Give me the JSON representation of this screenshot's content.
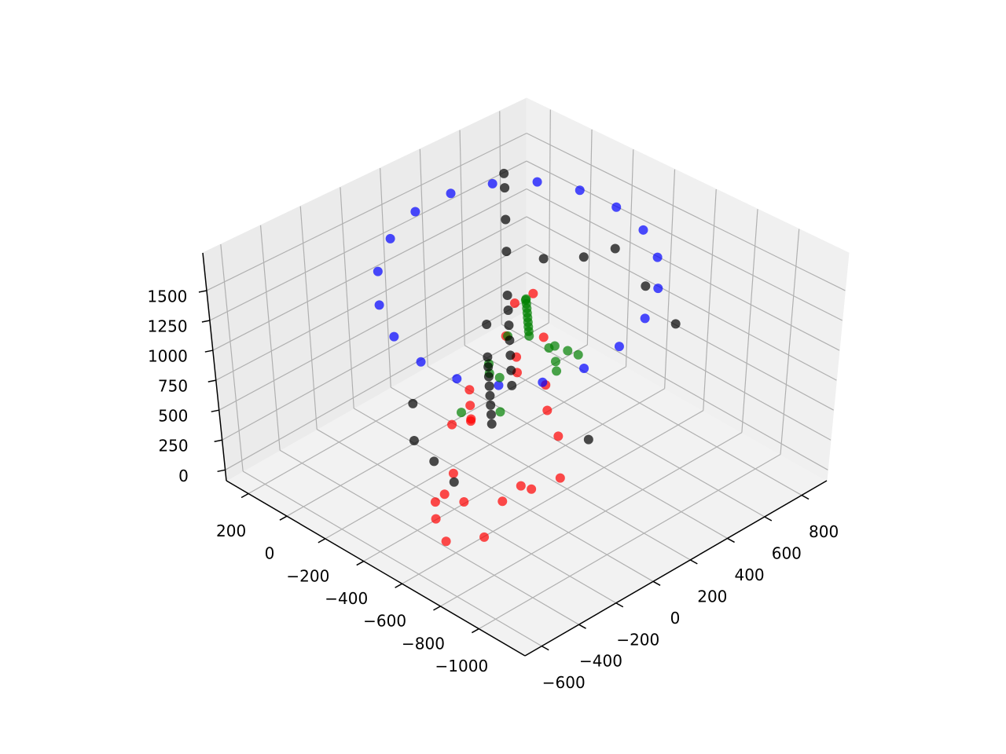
{
  "chart_data": {
    "type": "scatter3d",
    "grid": true,
    "xlim": [
      -1240,
      315
    ],
    "ylim": [
      -690,
      935
    ],
    "zlim": [
      -90,
      1815
    ],
    "xticks": [
      200,
      0,
      {
        "value": -200,
        "label": "−200"
      },
      {
        "value": -400,
        "label": "−400"
      },
      {
        "value": -600,
        "label": "−600"
      },
      {
        "value": -800,
        "label": "−800"
      },
      {
        "value": -1000,
        "label": "−1000"
      }
    ],
    "yticks": [
      {
        "value": -600,
        "label": "−600"
      },
      {
        "value": -400,
        "label": "−400"
      },
      {
        "value": -200,
        "label": "−200"
      },
      0,
      200,
      400,
      600,
      800
    ],
    "zticks": [
      0,
      250,
      500,
      750,
      1000,
      1250,
      1500
    ],
    "series": [
      {
        "color": "#ff0000",
        "x": [
          -500,
          -550,
          -600,
          -450,
          -700,
          -650,
          -400,
          -350,
          -750,
          -300,
          -200,
          -100,
          0,
          -250,
          -150,
          -50,
          100,
          150,
          -800,
          -850,
          -600,
          -400,
          -200,
          50,
          200
        ],
        "y": [
          -400,
          -300,
          -450,
          -350,
          -250,
          -100,
          -250,
          -150,
          -400,
          0,
          100,
          200,
          300,
          -50,
          400,
          500,
          600,
          700,
          -200,
          -100,
          150,
          300,
          500,
          750,
          850
        ],
        "z": [
          100,
          200,
          50,
          150,
          300,
          250,
          80,
          120,
          180,
          400,
          200,
          150,
          100,
          350,
          300,
          250,
          200,
          350,
          450,
          500,
          400,
          300,
          150,
          100,
          250
        ]
      },
      {
        "color": "#0000ff",
        "x": [
          200,
          175,
          105,
          -6,
          -145,
          -300,
          -455,
          -594,
          -705,
          -776,
          -800,
          -776,
          -705,
          -594,
          -455,
          -300,
          -145,
          -6,
          105,
          175
        ],
        "y": [
          250,
          405,
          544,
          655,
          726,
          750,
          726,
          655,
          544,
          405,
          250,
          95,
          -44,
          -155,
          -226,
          -250,
          -226,
          -155,
          -44,
          95
        ],
        "z": [
          1500,
          1550,
          1580,
          1600,
          1590,
          1560,
          1520,
          1470,
          1400,
          1330,
          1250,
          1180,
          1120,
          1090,
          1080,
          1100,
          1150,
          1230,
          1320,
          1420
        ]
      },
      {
        "color": "#008000",
        "x": [
          -500,
          -450,
          -400,
          -350,
          -300,
          -250,
          -200,
          -150,
          -100,
          -50,
          -400,
          -300,
          -200,
          -500,
          -600,
          -350,
          -250,
          -150,
          -450,
          -300,
          -550,
          -200
        ],
        "y": [
          100,
          150,
          200,
          250,
          300,
          350,
          400,
          450,
          500,
          550,
          50,
          100,
          200,
          300,
          250,
          400,
          500,
          600,
          0,
          -50,
          150,
          300
        ],
        "z": [
          1200,
          1150,
          1100,
          1050,
          1000,
          950,
          900,
          850,
          800,
          700,
          800,
          700,
          600,
          900,
          1000,
          500,
          400,
          350,
          600,
          500,
          1100,
          750
        ]
      },
      {
        "color": "#000000",
        "x": [
          -800,
          -700,
          -600,
          -500,
          -400,
          -300,
          -200,
          -100,
          0,
          100,
          200,
          -650,
          -550,
          -450,
          -350,
          -250,
          -150,
          -50,
          50,
          150,
          -700,
          -500,
          -300,
          -100,
          100,
          -600,
          -400,
          -200,
          0,
          -800
        ],
        "y": [
          -300,
          -200,
          -100,
          0,
          100,
          200,
          300,
          400,
          500,
          600,
          700,
          -250,
          -150,
          -50,
          50,
          150,
          250,
          350,
          450,
          550,
          650,
          700,
          750,
          800,
          800,
          -400,
          -300,
          -200,
          0,
          100
        ],
        "z": [
          1400,
          1350,
          1300,
          1250,
          1200,
          1150,
          1100,
          1300,
          1400,
          1500,
          1450,
          900,
          800,
          700,
          600,
          500,
          400,
          300,
          200,
          300,
          1000,
          1100,
          1200,
          900,
          700,
          500,
          400,
          300,
          250,
          600
        ]
      }
    ]
  }
}
